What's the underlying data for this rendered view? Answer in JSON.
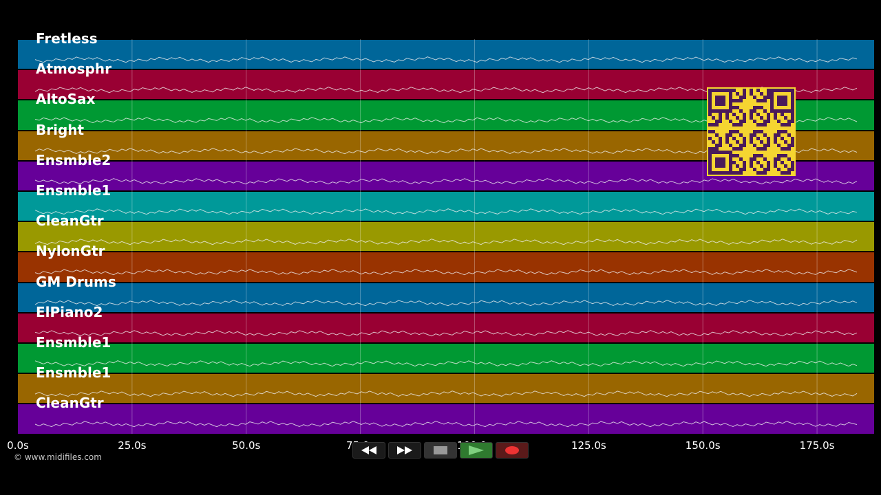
{
  "tracks": [
    {
      "label": "Fretless",
      "color": "#006699"
    },
    {
      "label": "Atmosphr",
      "color": "#990033"
    },
    {
      "label": "AltoSax",
      "color": "#009933"
    },
    {
      "label": "Bright",
      "color": "#996600"
    },
    {
      "label": "Ensmble2",
      "color": "#660099"
    },
    {
      "label": "Ensmble1",
      "color": "#009999"
    },
    {
      "label": "CleanGtr",
      "color": "#999900"
    },
    {
      "label": "NylonGtr",
      "color": "#993300"
    },
    {
      "label": "GM Drums",
      "color": "#006699"
    },
    {
      "label": "ElPiano2",
      "color": "#990033"
    },
    {
      "label": "Ensmble1",
      "color": "#009933"
    },
    {
      "label": "Ensmble1",
      "color": "#996600"
    },
    {
      "label": "CleanGtr",
      "color": "#660099"
    }
  ],
  "timeline": {
    "ticks": [
      "0.0s",
      "25.0s",
      "50.0s",
      "75.0s",
      "100.0s",
      "125.0s",
      "150.0s",
      "175.0s"
    ],
    "tick_seconds": [
      0,
      25,
      50,
      75,
      100,
      125,
      150,
      175
    ],
    "max_seconds": 187.5
  },
  "copyright": "© www.midifiles.com",
  "transport": [
    {
      "name": "rewind-button",
      "icon": "rewind-icon"
    },
    {
      "name": "fast-forward-button",
      "icon": "fast-forward-icon"
    },
    {
      "name": "stop-button",
      "icon": "stop-icon"
    },
    {
      "name": "play-button",
      "icon": "play-icon"
    },
    {
      "name": "record-button",
      "icon": "record-icon"
    }
  ],
  "overlay": {
    "qr_color": "#f5d531",
    "qr_dark": "#4a1a5a"
  }
}
